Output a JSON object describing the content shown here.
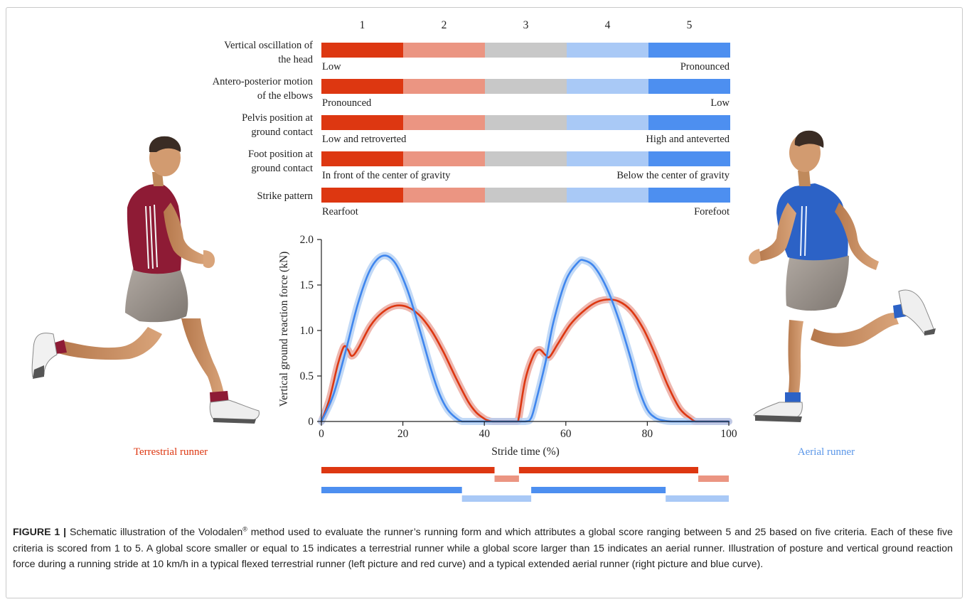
{
  "score_scale": {
    "columns": [
      "1",
      "2",
      "3",
      "4",
      "5"
    ],
    "colors": [
      "#dd3711",
      "#eb9582",
      "#c8c8c8",
      "#a9c9f6",
      "#4d8ff0"
    ],
    "criteria": [
      {
        "line1": "Vertical oscillation of",
        "line2": "the head",
        "low_label": "Low",
        "high_label": "Pronounced"
      },
      {
        "line1": "Antero-posterior motion",
        "line2": "of the elbows",
        "low_label": "Pronounced",
        "high_label": "Low"
      },
      {
        "line1": "Pelvis position at",
        "line2": "ground contact",
        "low_label": "Low and retroverted",
        "high_label": "High and anteverted"
      },
      {
        "line1": "Foot position at",
        "line2": "ground contact",
        "low_label": "In front of the center of gravity",
        "high_label": "Below the center of gravity"
      },
      {
        "line1": "Strike pattern",
        "line2": "",
        "low_label": "Rearfoot",
        "high_label": "Forefoot"
      }
    ]
  },
  "runners": {
    "terrestrial": {
      "label": "Terrestrial runner",
      "color": "#dd3711",
      "shirt_color": "#8e1b35"
    },
    "aerial": {
      "label": "Aerial runner",
      "color": "#5a96e8",
      "shirt_color": "#2c62c6"
    }
  },
  "chart_data": {
    "type": "line",
    "xlabel": "Stride time (%)",
    "ylabel": "Vertical ground reaction force (kN)",
    "xlim": [
      0,
      100
    ],
    "ylim": [
      0,
      2.0
    ],
    "xticks": [
      0,
      20,
      40,
      60,
      80,
      100
    ],
    "yticks": [
      0,
      0.5,
      1.0,
      1.5,
      2.0
    ],
    "ytick_labels": [
      "0",
      "0.5",
      "1.0",
      "1.5",
      "2.0"
    ],
    "series": [
      {
        "color": "#dd3711",
        "band_color": "#eaa49a",
        "x": [
          0,
          2,
          4,
          5.5,
          6.5,
          7.5,
          9,
          12,
          15,
          18,
          21,
          24,
          27,
          30,
          33,
          36,
          38,
          40,
          41,
          42,
          45,
          48,
          48.5,
          50,
          52,
          53.5,
          55,
          56,
          58,
          61,
          64,
          67,
          70,
          73,
          76,
          79,
          82,
          85,
          88,
          91,
          92,
          95,
          100
        ],
        "y": [
          0,
          0.25,
          0.62,
          0.82,
          0.79,
          0.72,
          0.8,
          1.05,
          1.2,
          1.27,
          1.26,
          1.17,
          1.0,
          0.76,
          0.48,
          0.22,
          0.1,
          0.03,
          0.01,
          0,
          0,
          0,
          0.05,
          0.45,
          0.72,
          0.79,
          0.73,
          0.71,
          0.85,
          1.06,
          1.2,
          1.3,
          1.34,
          1.32,
          1.22,
          1.02,
          0.73,
          0.4,
          0.14,
          0.02,
          0,
          0,
          0
        ]
      },
      {
        "color": "#3f86ee",
        "band_color": "#b3cff4",
        "x": [
          0,
          3,
          6,
          9,
          12,
          15,
          18,
          21,
          24,
          27,
          29,
          31,
          33,
          34.5,
          36,
          40,
          45,
          50,
          51.5,
          53,
          55,
          57,
          60,
          63,
          64.5,
          67,
          70,
          73,
          76,
          78,
          80,
          82,
          84,
          86,
          90,
          100
        ],
        "y": [
          0,
          0.3,
          0.78,
          1.3,
          1.67,
          1.82,
          1.75,
          1.46,
          1.03,
          0.56,
          0.3,
          0.13,
          0.04,
          0,
          0,
          0,
          0,
          0,
          0.04,
          0.28,
          0.65,
          1.1,
          1.55,
          1.75,
          1.77,
          1.7,
          1.47,
          1.12,
          0.68,
          0.35,
          0.13,
          0.04,
          0.01,
          0,
          0,
          0
        ]
      }
    ],
    "contact_bars": [
      {
        "runner": "terrestrial",
        "segments": [
          {
            "start": 0,
            "end": 42.5,
            "phase": "contact"
          },
          {
            "start": 42.5,
            "end": 48.5,
            "phase": "flight"
          },
          {
            "start": 48.5,
            "end": 92.5,
            "phase": "contact"
          },
          {
            "start": 92.5,
            "end": 100,
            "phase": "flight"
          }
        ]
      },
      {
        "runner": "aerial",
        "segments": [
          {
            "start": 0,
            "end": 34.5,
            "phase": "contact"
          },
          {
            "start": 34.5,
            "end": 51.5,
            "phase": "flight"
          },
          {
            "start": 51.5,
            "end": 84.5,
            "phase": "contact"
          },
          {
            "start": 84.5,
            "end": 100,
            "phase": "flight"
          }
        ]
      }
    ]
  },
  "caption": {
    "label": "FIGURE 1 |",
    "text_before": " Schematic illustration of the Volodalen",
    "trademark": "®",
    "text_after": " method used to evaluate the runner’s running form and which attributes a global score ranging between 5 and 25 based on five criteria. Each of these five criteria is scored from 1 to 5. A global score smaller or equal to 15 indicates a terrestrial runner while a global score larger than 15 indicates an aerial runner. Illustration of posture and vertical ground reaction force during a running stride at 10 km/h in a typical flexed terrestrial runner (left picture and red curve) and a typical extended aerial runner (right picture and blue curve)."
  }
}
